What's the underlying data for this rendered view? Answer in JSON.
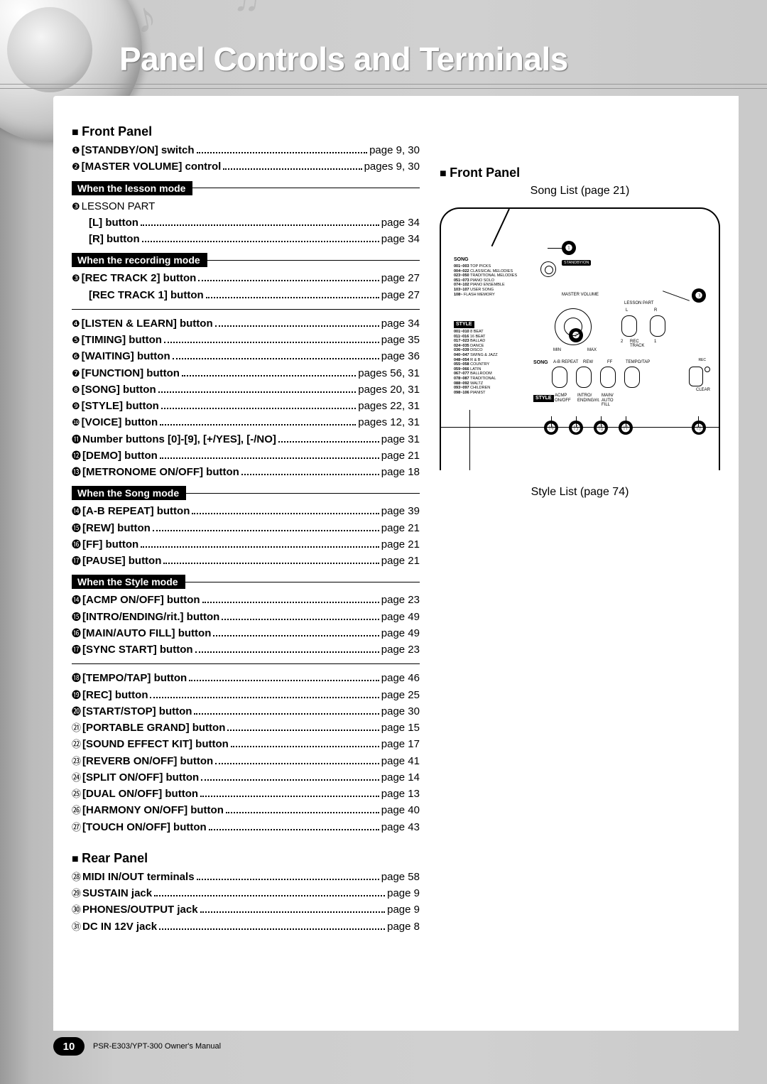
{
  "title": "Panel Controls and Terminals",
  "footer": {
    "pageNum": "10",
    "manual": "PSR-E303/YPT-300   Owner's Manual"
  },
  "left": {
    "frontPanel": "Front Panel",
    "rearPanel": "Rear Panel",
    "modes": {
      "lesson": "When the lesson mode",
      "recording": "When the recording mode",
      "song": "When the Song mode",
      "style": "When the Style mode"
    },
    "items": {
      "i1": {
        "n": "❶",
        "l": "[STANDBY/ON] switch",
        "p": "page 9, 30"
      },
      "i2": {
        "n": "❷",
        "l": "[MASTER VOLUME] control",
        "p": "pages 9, 30"
      },
      "i3a": {
        "n": "❸",
        "l": "LESSON PART",
        "p": ""
      },
      "i3L": {
        "n": "",
        "l": "[L] button",
        "p": "page 34"
      },
      "i3R": {
        "n": "",
        "l": "[R] button",
        "p": "page 34"
      },
      "i3b": {
        "n": "❸",
        "l": "[REC TRACK 2] button",
        "p": "page 27"
      },
      "i3c": {
        "n": "",
        "l": "[REC TRACK 1] button",
        "p": "page 27"
      },
      "i4": {
        "n": "❹",
        "l": "[LISTEN & LEARN] button",
        "p": "page 34"
      },
      "i5": {
        "n": "❺",
        "l": "[TIMING] button",
        "p": "page 35"
      },
      "i6": {
        "n": "❻",
        "l": "[WAITING] button",
        "p": "page 36"
      },
      "i7": {
        "n": "❼",
        "l": "[FUNCTION] button",
        "p": "pages 56, 31"
      },
      "i8": {
        "n": "❽",
        "l": "[SONG] button",
        "p": "pages 20, 31"
      },
      "i9": {
        "n": "❾",
        "l": "[STYLE] button",
        "p": "pages 22, 31"
      },
      "i10": {
        "n": "❿",
        "l": "[VOICE] button",
        "p": "pages 12, 31"
      },
      "i11": {
        "n": "⓫",
        "l": "Number buttons [0]-[9], [+/YES], [-/NO]",
        "p": "page 31"
      },
      "i12": {
        "n": "⓬",
        "l": "[DEMO] button",
        "p": "page 21"
      },
      "i13": {
        "n": "⓭",
        "l": "[METRONOME ON/OFF] button",
        "p": "page 18"
      },
      "i14a": {
        "n": "⓮",
        "l": "[A-B REPEAT] button",
        "p": "page 39"
      },
      "i15a": {
        "n": "⓯",
        "l": "[REW] button",
        "p": "page 21"
      },
      "i16a": {
        "n": "⓰",
        "l": "[FF] button",
        "p": "page 21"
      },
      "i17a": {
        "n": "⓱",
        "l": "[PAUSE] button",
        "p": "page 21"
      },
      "i14b": {
        "n": "⓮",
        "l": "[ACMP ON/OFF] button",
        "p": "page 23"
      },
      "i15b": {
        "n": "⓯",
        "l": "[INTRO/ENDING/rit.] button",
        "p": "page 49"
      },
      "i16b": {
        "n": "⓰",
        "l": "[MAIN/AUTO FILL] button",
        "p": "page 49"
      },
      "i17b": {
        "n": "⓱",
        "l": "[SYNC START] button",
        "p": "page 23"
      },
      "i18": {
        "n": "⓲",
        "l": "[TEMPO/TAP] button",
        "p": "page 46"
      },
      "i19": {
        "n": "⓳",
        "l": "[REC] button",
        "p": "page 25"
      },
      "i20": {
        "n": "⓴",
        "l": "[START/STOP] button",
        "p": "page 30"
      },
      "i21": {
        "n": "㉑",
        "l": "[PORTABLE GRAND] button",
        "p": "page 15"
      },
      "i22": {
        "n": "㉒",
        "l": "[SOUND EFFECT KIT] button",
        "p": "page 17"
      },
      "i23": {
        "n": "㉓",
        "l": "[REVERB ON/OFF] button",
        "p": "page 41"
      },
      "i24": {
        "n": "㉔",
        "l": "[SPLIT ON/OFF] button",
        "p": "page 14"
      },
      "i25": {
        "n": "㉕",
        "l": "[DUAL ON/OFF] button",
        "p": "page 13"
      },
      "i26": {
        "n": "㉖",
        "l": "[HARMONY ON/OFF] button",
        "p": "page 40"
      },
      "i27": {
        "n": "㉗",
        "l": "[TOUCH ON/OFF] button",
        "p": "page 43"
      },
      "r28": {
        "n": "㉘",
        "l": "MIDI IN/OUT terminals",
        "p": "page 58"
      },
      "r29": {
        "n": "㉙",
        "l": "SUSTAIN jack",
        "p": "page 9"
      },
      "r30": {
        "n": "㉚",
        "l": "PHONES/OUTPUT jack",
        "p": "page 9"
      },
      "r31": {
        "n": "㉛",
        "l": "DC IN 12V jack",
        "p": "page 8"
      }
    }
  },
  "right": {
    "frontPanel": "Front Panel",
    "songList": "Song List (page 21)",
    "styleList": "Style List (page 74)",
    "callouts": {
      "c1": "❶",
      "c2": "❷",
      "c3": "❸",
      "c14": "⓮",
      "c15": "⓯",
      "c16": "⓰",
      "c17": "⓱",
      "c18": "⓲"
    },
    "songCategories": [
      {
        "r": "001~003",
        "t": "TOP PICKS"
      },
      {
        "r": "004~022",
        "t": "CLASSICAL MELODIES"
      },
      {
        "r": "023~050",
        "t": "TRADITIONAL MELODIES"
      },
      {
        "r": "051~073",
        "t": "PIANO SOLO"
      },
      {
        "r": "074~102",
        "t": "PIANO ENSEMBLE"
      },
      {
        "r": "103~107",
        "t": "USER SONG"
      },
      {
        "r": "108~",
        "t": "FLASH MEMORY"
      }
    ],
    "styleCategories": [
      {
        "r": "001~010",
        "t": "8 BEAT"
      },
      {
        "r": "011~016",
        "t": "16 BEAT"
      },
      {
        "r": "017~023",
        "t": "BALLAD"
      },
      {
        "r": "024~035",
        "t": "DANCE"
      },
      {
        "r": "036~039",
        "t": "DISCO"
      },
      {
        "r": "040~047",
        "t": "SWING & JAZZ"
      },
      {
        "r": "048~054",
        "t": "R & B"
      },
      {
        "r": "055~058",
        "t": "COUNTRY"
      },
      {
        "r": "059~066",
        "t": "LATIN"
      },
      {
        "r": "067~077",
        "t": "BALLROOM"
      },
      {
        "r": "078~087",
        "t": "TRADITIONAL"
      },
      {
        "r": "088~092",
        "t": "WALTZ"
      },
      {
        "r": "093~097",
        "t": "CHILDREN"
      },
      {
        "r": "098~106",
        "t": "PIANIST"
      }
    ],
    "panelLabels": {
      "song": "SONG",
      "style": "STYLE",
      "standby": "STANDBY/ON",
      "master": "MASTER VOLUME",
      "lesson": "LESSON PART",
      "l": "L",
      "r": "R",
      "rec": "REC",
      "track": "TRACK",
      "min": "MIN",
      "max": "MAX",
      "ab": "A-B REPEAT",
      "rew": "REW",
      "ff": "FF",
      "tempo": "TEMPO/TAP",
      "acmp": "ACMP ON/OFF",
      "intro": "INTRO/ ENDING/rit.",
      "main": "MAIN/ AUTO FILL",
      "clear": "CLEAR",
      "n1": "1",
      "n2": "2"
    }
  }
}
